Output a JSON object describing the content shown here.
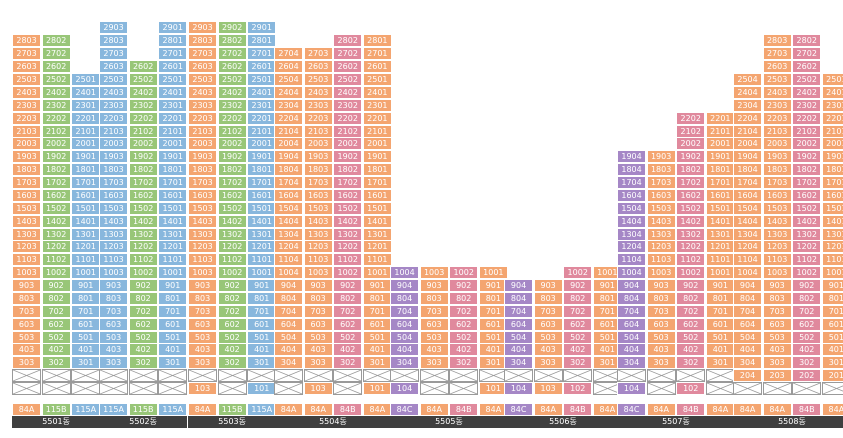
{
  "colors": {
    "84A": "#f4a570",
    "84B": "#e0899d",
    "84C": "#a587c6",
    "115A": "#88b7dd",
    "115B": "#98c678",
    "label_bar": "#3f3f3f",
    "empty_border": "#9a9a9a"
  },
  "buildings": [
    {
      "name": "5501동",
      "columns": [
        {
          "type": "84A",
          "top": 28,
          "gaps": [
            1,
            2
          ]
        },
        {
          "type": "115B",
          "top": 28,
          "gaps": [
            1,
            2
          ]
        },
        {
          "type": "115A",
          "top": 25,
          "gaps": [
            1,
            2
          ]
        }
      ]
    },
    {
      "name": "5502동",
      "columns": [
        {
          "type": "115A",
          "top": 29,
          "gaps": [
            1,
            2
          ]
        },
        {
          "type": "115B",
          "top": 26,
          "gaps": [
            1,
            2
          ]
        },
        {
          "type": "115A",
          "top": 29,
          "gaps": [
            1,
            2
          ]
        }
      ]
    },
    {
      "name": "5503동",
      "columns": [
        {
          "type": "84A",
          "top": 29,
          "gaps": [
            2
          ]
        },
        {
          "type": "115B",
          "top": 29,
          "gaps": [
            1,
            2
          ]
        },
        {
          "type": "115A",
          "top": 29,
          "gaps": [
            2
          ]
        }
      ]
    },
    {
      "name": "5504동",
      "columns": [
        {
          "type": "84A",
          "top": 27,
          "gaps": [
            1,
            2
          ]
        },
        {
          "type": "84A",
          "top": 27,
          "gaps": [
            2
          ]
        },
        {
          "type": "84B",
          "top": 28,
          "gaps": [
            1,
            2
          ]
        },
        {
          "type": "84A",
          "top": 28,
          "gaps": [
            2
          ]
        }
      ]
    },
    {
      "name": "5505동",
      "columns": [
        {
          "type": "84C",
          "top": 10,
          "gaps": [
            2
          ]
        },
        {
          "type": "84A",
          "top": 10,
          "gaps": [
            1,
            2
          ]
        },
        {
          "type": "84B",
          "top": 10,
          "gaps": [
            1,
            2
          ]
        },
        {
          "type": "84A",
          "top": 10,
          "gaps": [
            2
          ]
        }
      ]
    },
    {
      "name": "5506동",
      "columns": [
        {
          "type": "84C",
          "top": 9,
          "gaps": [
            2
          ]
        },
        {
          "type": "84A",
          "top": 9,
          "gaps": [
            2
          ]
        },
        {
          "type": "84B",
          "top": 10,
          "gaps": [
            2
          ]
        },
        {
          "type": "84A",
          "top": 10,
          "gaps": [
            1,
            2
          ]
        }
      ]
    },
    {
      "name": "5507동",
      "columns": [
        {
          "type": "84C",
          "top": 19,
          "gaps": [
            2
          ]
        },
        {
          "type": "84A",
          "top": 19,
          "gaps": [
            1,
            2
          ]
        },
        {
          "type": "84B",
          "top": 22,
          "gaps": [
            2
          ]
        },
        {
          "type": "84A",
          "top": 22,
          "gaps": [
            1,
            2
          ]
        }
      ]
    },
    {
      "name": "5508동",
      "columns": [
        {
          "type": "84A",
          "top": 25,
          "gaps": [
            1
          ]
        },
        {
          "type": "84A",
          "top": 28,
          "gaps": [
            1
          ]
        },
        {
          "type": "84B",
          "top": 28,
          "gaps": [
            1
          ]
        },
        {
          "type": "84A",
          "top": 25,
          "gaps": [
            1
          ]
        }
      ]
    }
  ]
}
